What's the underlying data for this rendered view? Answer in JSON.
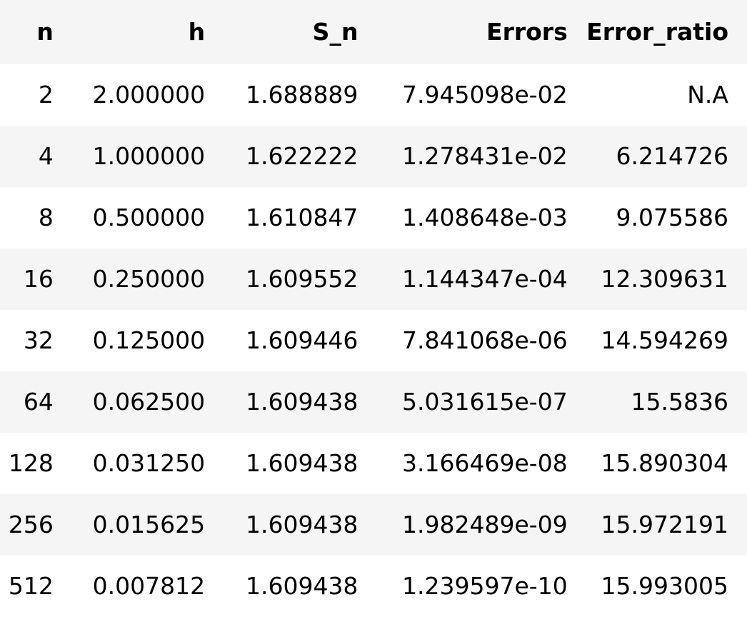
{
  "table": {
    "columns": [
      "n",
      "h",
      "S_n",
      "Errors",
      "Error_ratio"
    ],
    "rows": [
      [
        "2",
        "2.000000",
        "1.688889",
        "7.945098e-02",
        "N.A"
      ],
      [
        "4",
        "1.000000",
        "1.622222",
        "1.278431e-02",
        "6.214726"
      ],
      [
        "8",
        "0.500000",
        "1.610847",
        "1.408648e-03",
        "9.075586"
      ],
      [
        "16",
        "0.250000",
        "1.609552",
        "1.144347e-04",
        "12.309631"
      ],
      [
        "32",
        "0.125000",
        "1.609446",
        "7.841068e-06",
        "14.594269"
      ],
      [
        "64",
        "0.062500",
        "1.609438",
        "5.031615e-07",
        "15.5836"
      ],
      [
        "128",
        "0.031250",
        "1.609438",
        "3.166469e-08",
        "15.890304"
      ],
      [
        "256",
        "0.015625",
        "1.609438",
        "1.982489e-09",
        "15.972191"
      ],
      [
        "512",
        "0.007812",
        "1.609438",
        "1.239597e-10",
        "15.993005"
      ]
    ]
  }
}
